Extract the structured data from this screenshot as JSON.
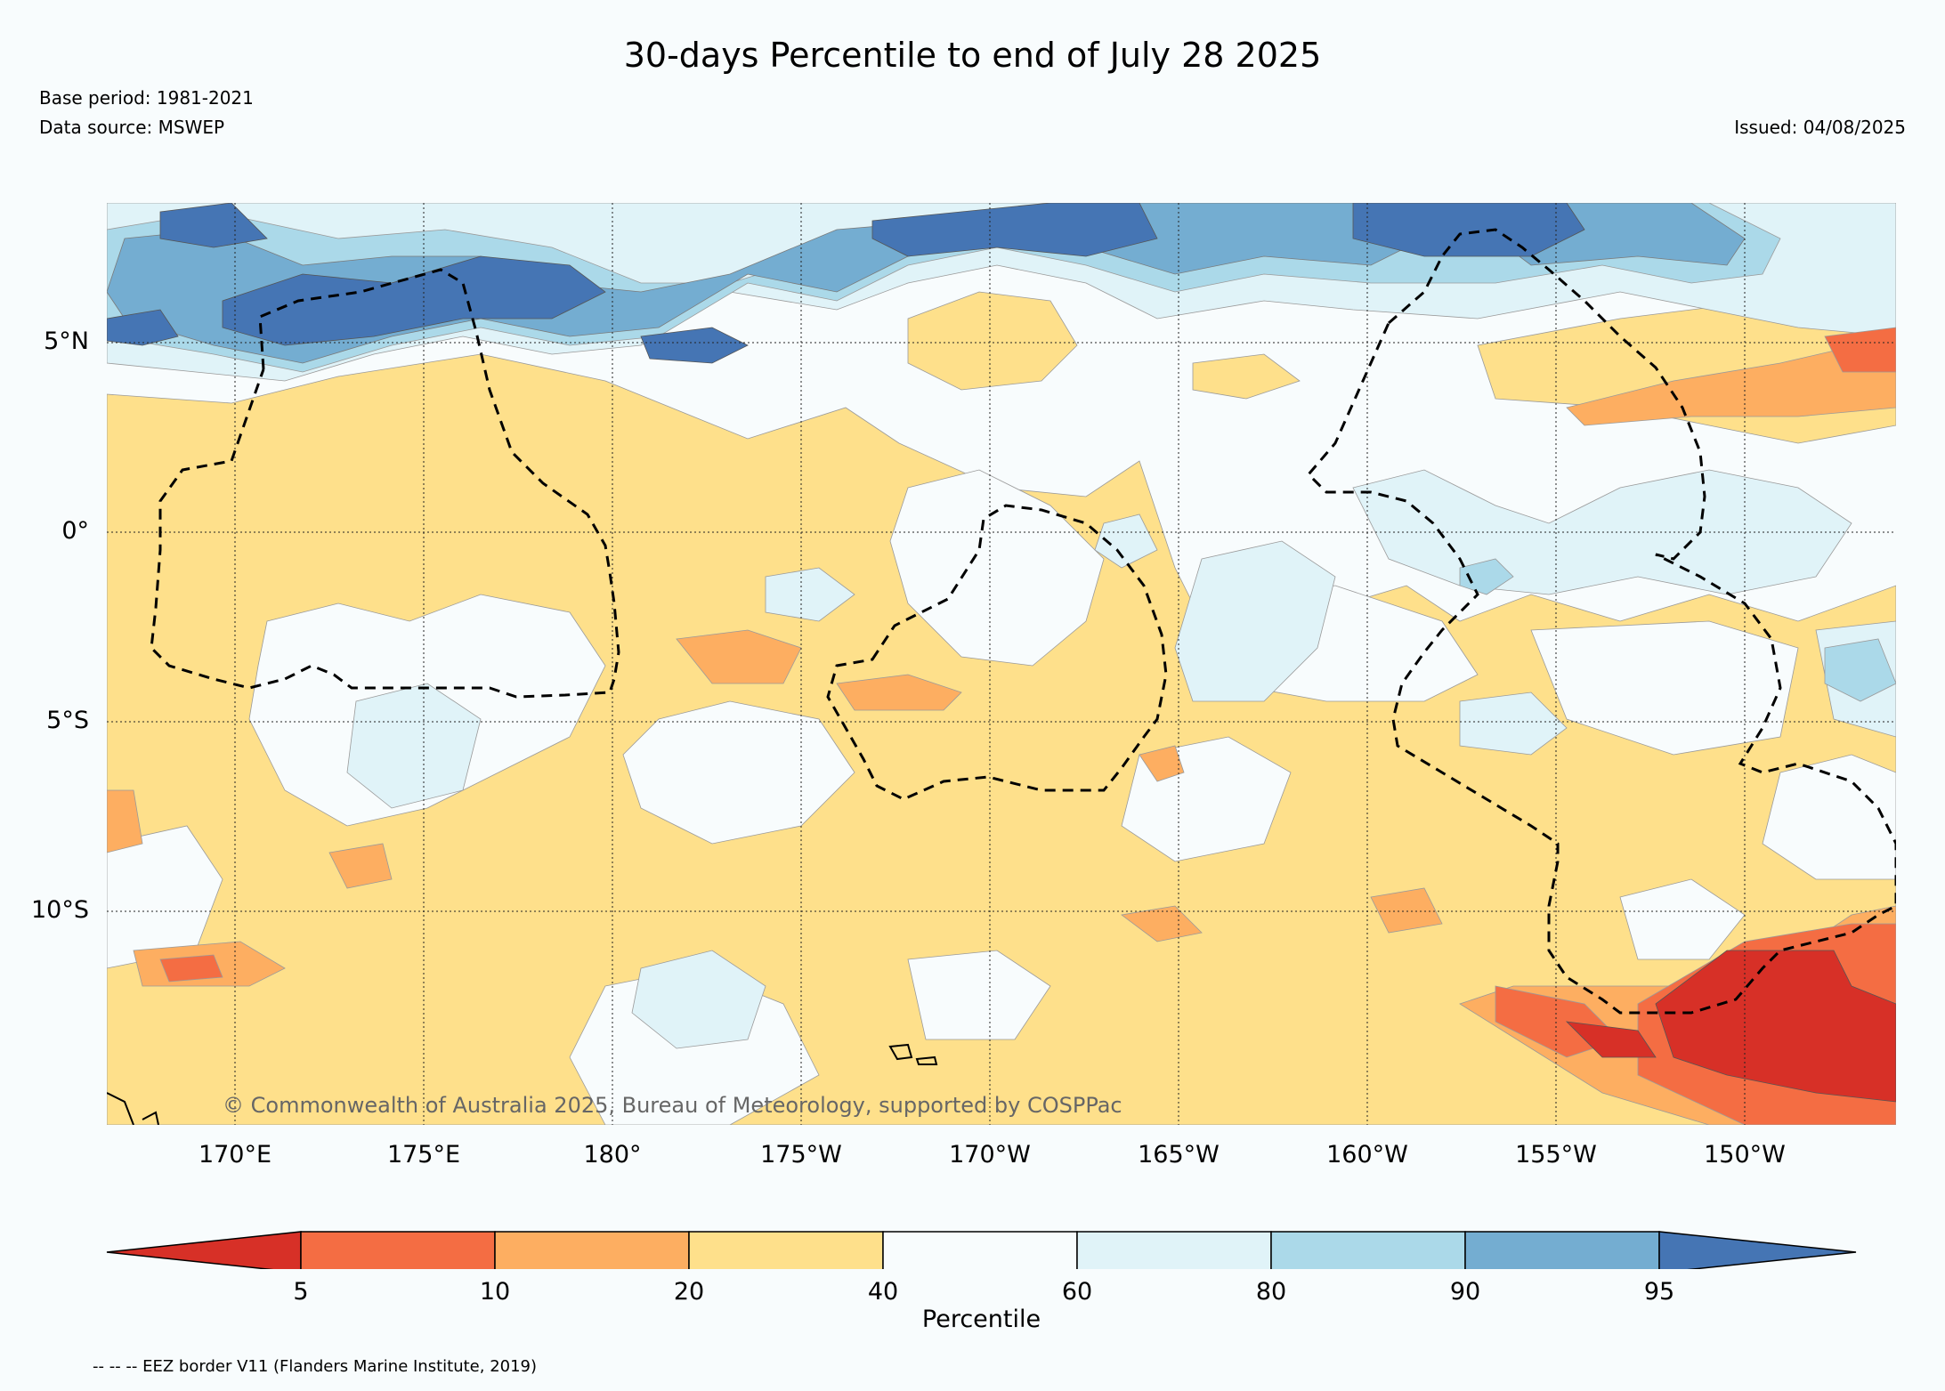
{
  "header": {
    "title": "30-days Percentile to end of July 28 2025",
    "base_period": "Base period: 1981-2021",
    "data_source": "Data source: MSWEP",
    "issued": "Issued: 04/08/2025"
  },
  "map": {
    "lat_labels": [
      "5°N",
      "0°",
      "5°S",
      "10°S"
    ],
    "lon_labels": [
      "170°E",
      "175°E",
      "180°",
      "175°W",
      "170°W",
      "165°W",
      "160°W",
      "155°W",
      "150°W"
    ],
    "copyright": "© Commonwealth of Australia 2025, Bureau of Meteorology, supported by COSPPac"
  },
  "colorbar": {
    "label": "Percentile",
    "ticks": [
      "5",
      "10",
      "20",
      "40",
      "60",
      "80",
      "90",
      "95"
    ],
    "colors": {
      "lt5": "#d73027",
      "5-10": "#f46d43",
      "10-20": "#fdae61",
      "20-40": "#fee08b",
      "40-60": "#f8fcfd",
      "60-80": "#e0f3f8",
      "80-90": "#abd9e9",
      "90-95": "#74add1",
      "gt95": "#4575b4"
    }
  },
  "legend": {
    "eez_note": "-- -- -- EEZ border V11 (Flanders Marine Institute, 2019)"
  }
}
